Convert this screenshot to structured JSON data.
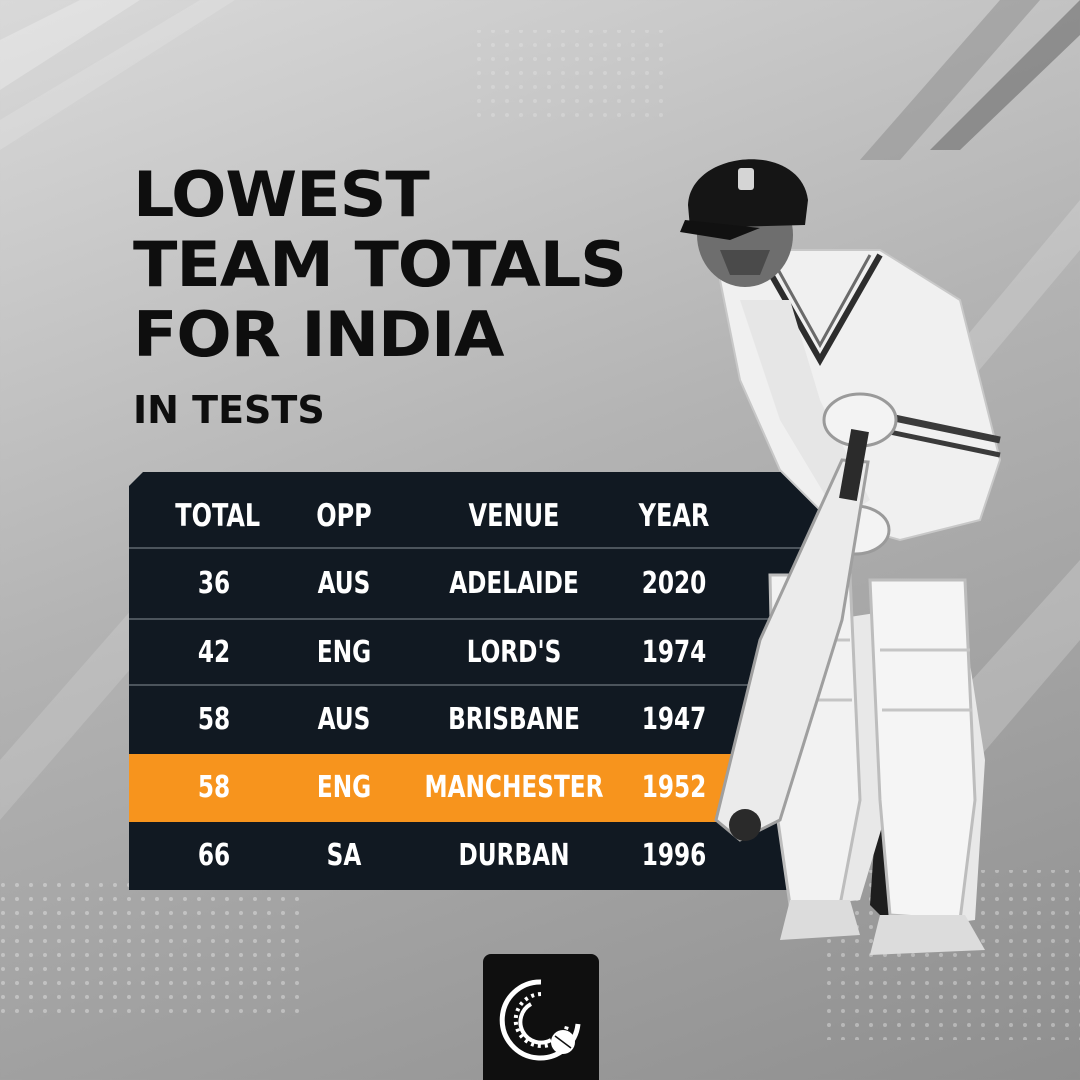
{
  "title": {
    "line1": "LOWEST",
    "line2": "TEAM TOTALS",
    "line3": "FOR INDIA",
    "subtitle": "IN TESTS"
  },
  "table": {
    "headers": [
      "TOTAL",
      "OPP",
      "VENUE",
      "YEAR"
    ],
    "rows": [
      [
        "36",
        "AUS",
        "ADELAIDE",
        "2020"
      ],
      [
        "42",
        "ENG",
        "LORD'S",
        "1974"
      ],
      [
        "58",
        "AUS",
        "BRISBANE",
        "1947"
      ],
      [
        "58",
        "ENG",
        "MANCHESTER",
        "1952"
      ],
      [
        "66",
        "SA",
        "DURBAN",
        "1996"
      ]
    ],
    "highlight_row_index": 3
  },
  "colors": {
    "table_background": "#111922",
    "highlight": "#f7941d",
    "title_text": "#0e0e0e"
  },
  "icons": {
    "brand_logo": "cricket-ball-logo-icon"
  }
}
